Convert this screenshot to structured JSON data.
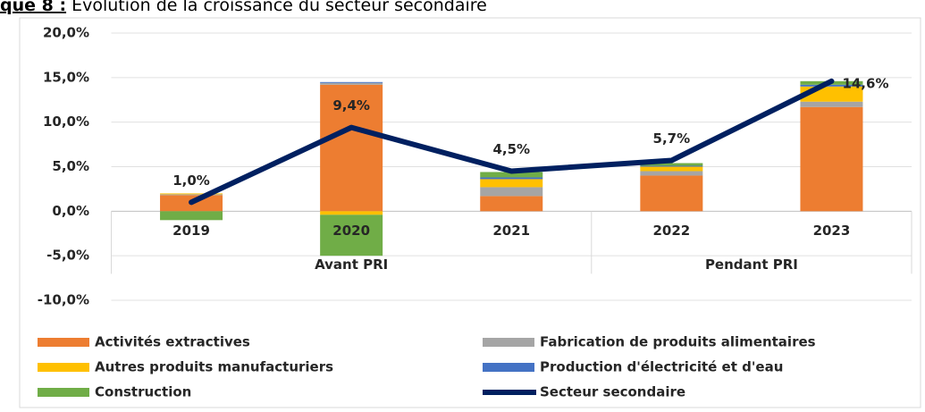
{
  "chart_data": {
    "type": "stacked-bar-line",
    "title_prefix": "que 8 :",
    "title": " Évolution de la croissance du secteur secondaire",
    "categories": [
      "2019",
      "2020",
      "2021",
      "2022",
      "2023"
    ],
    "groups": [
      {
        "label": "Avant PRI",
        "count": 3
      },
      {
        "label": "Pendant PRI",
        "count": 2
      }
    ],
    "ylim": [
      -10,
      20
    ],
    "yticks": [
      {
        "value": -10,
        "label": "-10,0%"
      },
      {
        "value": -5,
        "label": "-5,0%"
      },
      {
        "value": 0,
        "label": "0,0%"
      },
      {
        "value": 5,
        "label": "5,0%"
      },
      {
        "value": 10,
        "label": "10,0%"
      },
      {
        "value": 15,
        "label": "15,0%"
      },
      {
        "value": 20,
        "label": "20,0%"
      }
    ],
    "grid": true,
    "series": [
      {
        "name": "Activités extractives",
        "color": "#ED7D31",
        "values": [
          1.8,
          14.2,
          1.7,
          4.0,
          11.7
        ]
      },
      {
        "name": "Fabrication de produits alimentaires",
        "color": "#A5A5A5",
        "values": [
          0.1,
          0.2,
          1.0,
          0.5,
          0.6
        ]
      },
      {
        "name": "Autres produits manufacturiers",
        "color": "#FFC000",
        "values": [
          0.1,
          -0.4,
          0.9,
          0.5,
          1.7
        ]
      },
      {
        "name": "Production d'électricité et d'eau",
        "color": "#4472C4",
        "values": [
          0.0,
          0.1,
          0.2,
          0.1,
          0.2
        ]
      },
      {
        "name": "Construction",
        "color": "#70AD47",
        "values": [
          -1.0,
          -4.6,
          0.6,
          0.3,
          0.4
        ]
      },
      {
        "name": "Secteur secondaire",
        "color": "#002060",
        "type": "line",
        "values": [
          1.0,
          9.4,
          4.5,
          5.7,
          14.6
        ],
        "value_labels": [
          "1,0%",
          "9,4%",
          "4,5%",
          "5,7%",
          "14,6%"
        ]
      }
    ]
  }
}
